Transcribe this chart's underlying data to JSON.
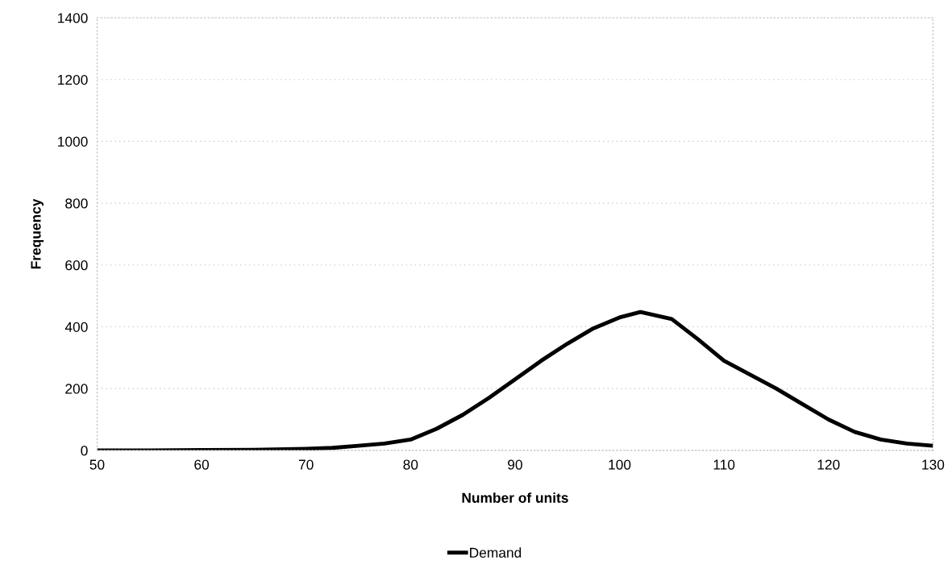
{
  "chart_data": {
    "type": "line",
    "xlabel": "Number of units",
    "ylabel": "Frequency",
    "x": [
      50,
      55,
      60,
      65,
      70,
      72.5,
      75,
      77.5,
      80,
      82.5,
      85,
      87.5,
      90,
      92.5,
      95,
      97.5,
      100,
      102,
      105,
      107.5,
      110,
      112.5,
      115,
      117.5,
      120,
      122.5,
      125,
      127.5,
      130
    ],
    "series": [
      {
        "name": "Demand",
        "color": "#000000",
        "values": [
          0,
          0,
          1,
          2,
          5,
          8,
          15,
          22,
          35,
          70,
          115,
          170,
          230,
          290,
          345,
          395,
          430,
          448,
          425,
          360,
          290,
          245,
          200,
          150,
          100,
          60,
          35,
          22,
          15
        ]
      }
    ],
    "xlim": [
      50,
      130
    ],
    "xticks": [
      50,
      60,
      70,
      80,
      90,
      100,
      110,
      120,
      130
    ],
    "ylim": [
      0,
      1400
    ],
    "yticks": [
      0,
      200,
      400,
      600,
      800,
      1000,
      1200,
      1400
    ],
    "grid": "y",
    "legend": "bottom",
    "marker": "none",
    "line_style": "solid"
  }
}
